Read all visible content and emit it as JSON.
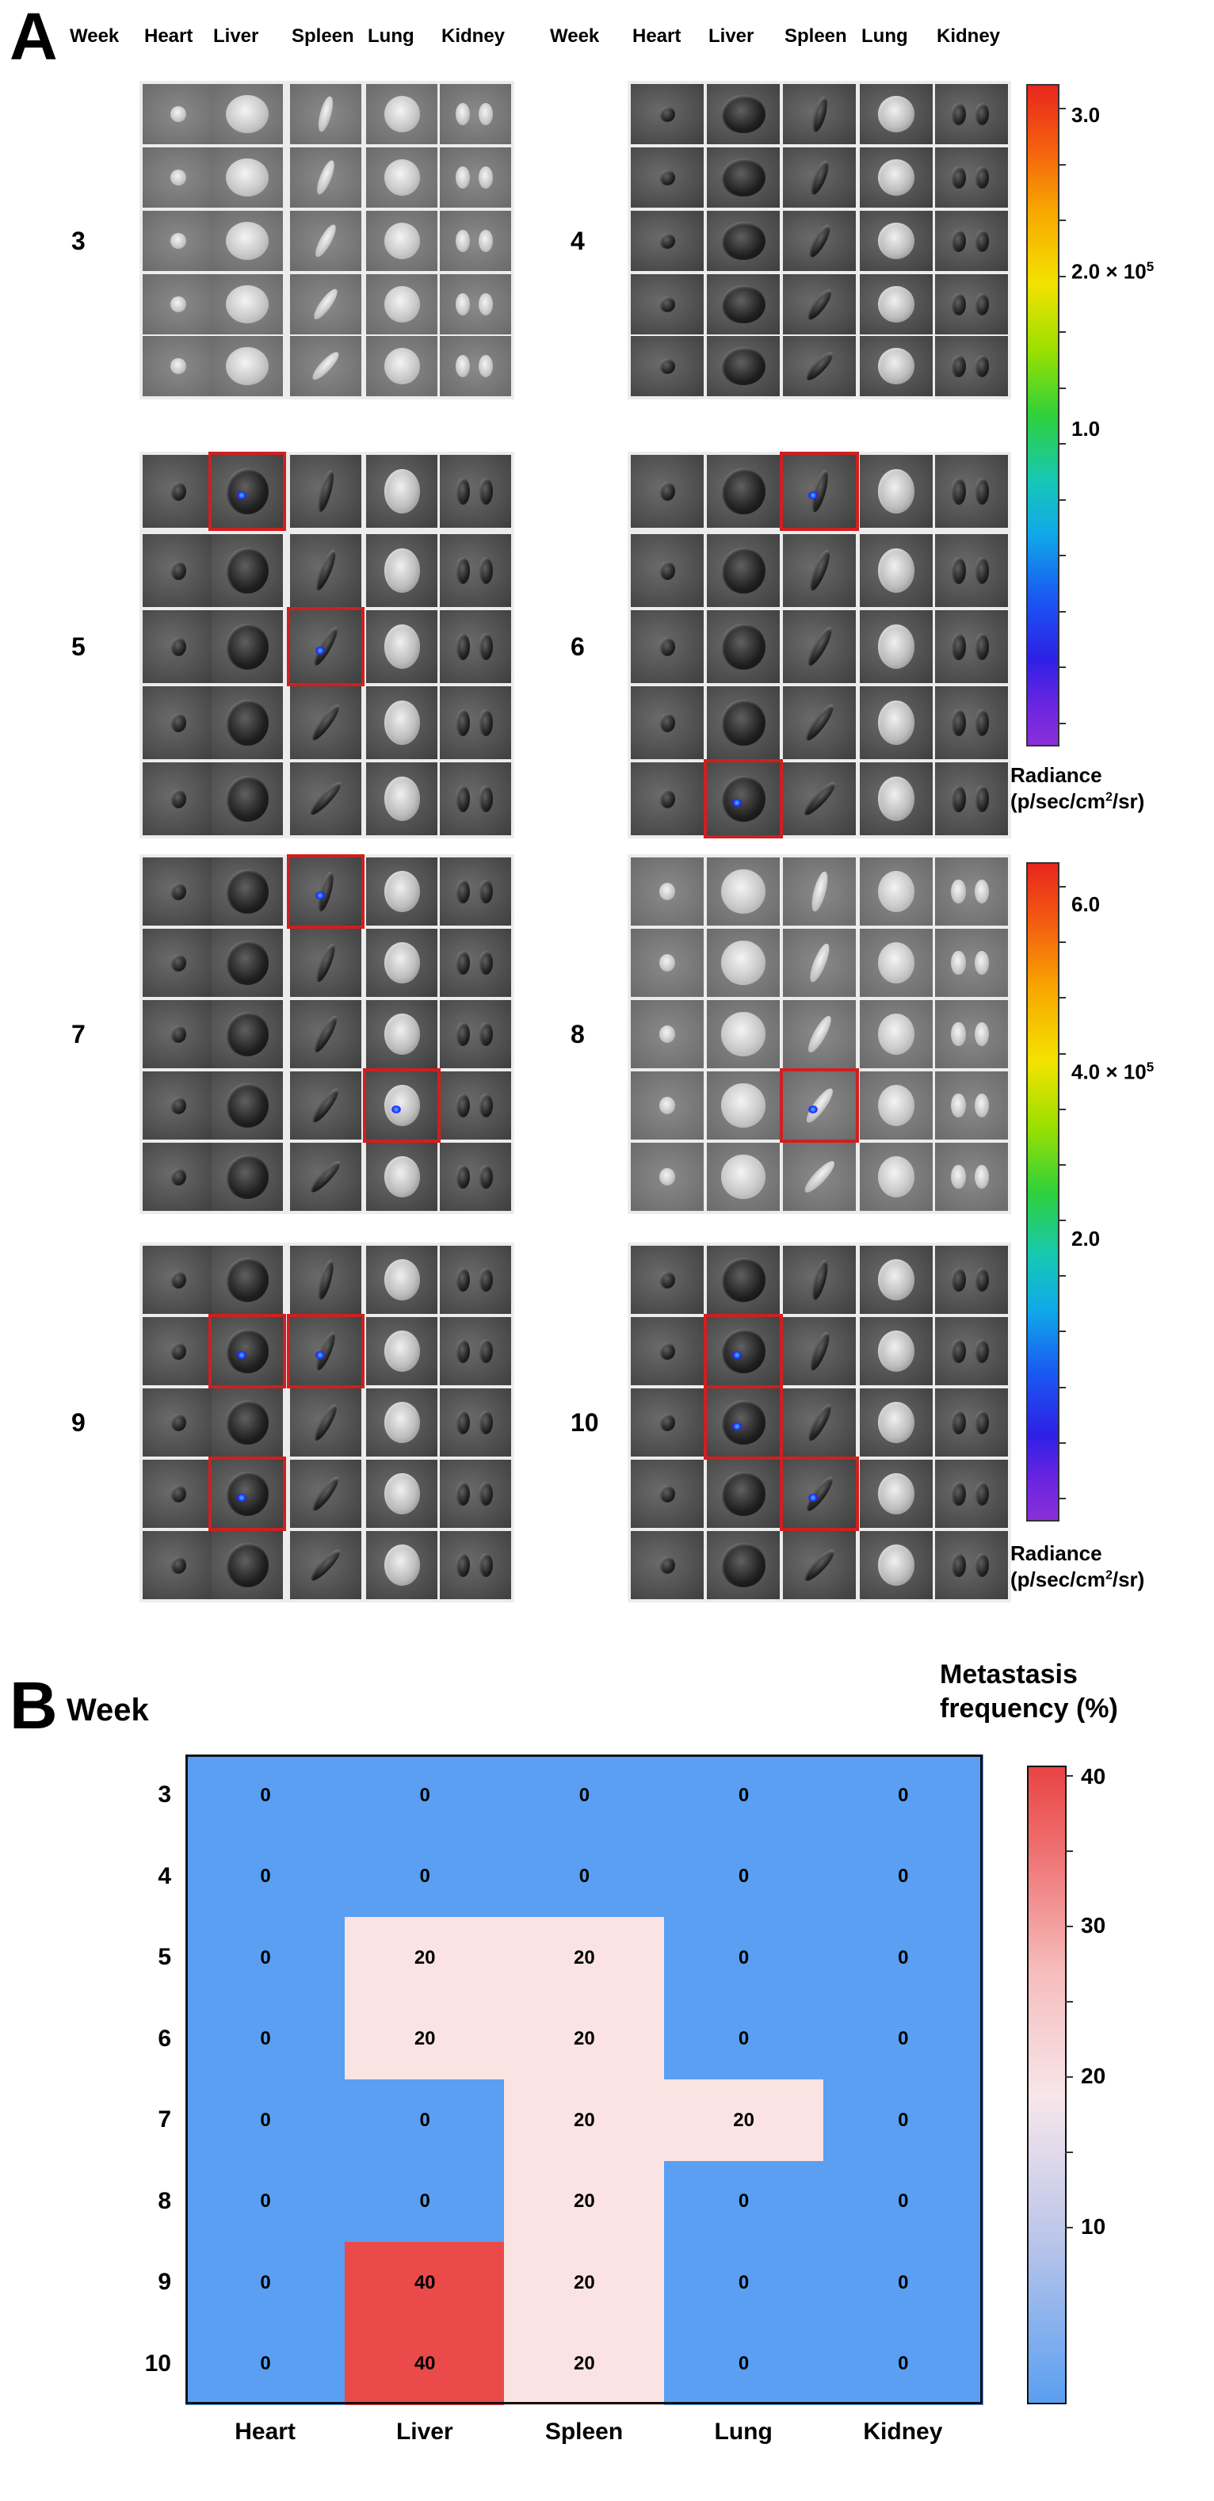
{
  "panel_a": {
    "label": "A",
    "header_week": "Week",
    "organs": [
      "Heart",
      "Liver",
      "Spleen",
      "Lung",
      "Kidney"
    ],
    "groups": [
      {
        "week": "3",
        "style": "light",
        "highlights": []
      },
      {
        "week": "4",
        "style": "dark",
        "highlights": []
      },
      {
        "week": "5",
        "style": "dark",
        "highlights": [
          [
            0,
            1
          ],
          [
            2,
            2
          ]
        ]
      },
      {
        "week": "6",
        "style": "dark",
        "highlights": [
          [
            0,
            2
          ],
          [
            4,
            1
          ]
        ]
      },
      {
        "week": "7",
        "style": "dark",
        "highlights": [
          [
            0,
            2
          ],
          [
            3,
            3
          ]
        ]
      },
      {
        "week": "8",
        "style": "light",
        "highlights": [
          [
            3,
            2
          ]
        ]
      },
      {
        "week": "9",
        "style": "dark",
        "highlights": [
          [
            1,
            1
          ],
          [
            1,
            2
          ],
          [
            3,
            1
          ]
        ]
      },
      {
        "week": "10",
        "style": "dark",
        "highlights": [
          [
            1,
            1
          ],
          [
            2,
            1
          ],
          [
            3,
            2
          ]
        ]
      }
    ],
    "colorbars": [
      {
        "ticks": [
          "3.0",
          "2.0",
          "1.0"
        ],
        "exponent": "5",
        "exp_tick_index": 1,
        "radiance_label_1": "Radiance",
        "radiance_label_2": "(p/sec/cm",
        "radiance_label_sup": "2",
        "radiance_label_3": "/sr)"
      },
      {
        "ticks": [
          "6.0",
          "4.0",
          "2.0"
        ],
        "exponent": "5",
        "exp_tick_index": 1,
        "radiance_label_1": "Radiance",
        "radiance_label_2": "(p/sec/cm",
        "radiance_label_sup": "2",
        "radiance_label_3": "/sr)"
      }
    ],
    "highlight_color": "#d01f1f"
  },
  "panel_b": {
    "label": "B",
    "y_title": "Week",
    "colorbar_title_1": "Metastasis",
    "colorbar_title_2": "frequency (%)",
    "colorbar_ticks": [
      "40",
      "30",
      "20",
      "10"
    ],
    "colors": {
      "low": "#5a9ff1",
      "mid": "#fbe3e3",
      "high": "#ea4a4a"
    }
  },
  "chart_data": {
    "type": "heatmap",
    "title": "",
    "xlabel": "",
    "ylabel": "Week",
    "x": [
      "Heart",
      "Liver",
      "Spleen",
      "Lung",
      "Kidney"
    ],
    "y": [
      "3",
      "4",
      "5",
      "6",
      "7",
      "8",
      "9",
      "10"
    ],
    "values": [
      [
        0,
        0,
        0,
        0,
        0
      ],
      [
        0,
        0,
        0,
        0,
        0
      ],
      [
        0,
        20,
        20,
        0,
        0
      ],
      [
        0,
        20,
        20,
        0,
        0
      ],
      [
        0,
        0,
        20,
        20,
        0
      ],
      [
        0,
        0,
        20,
        0,
        0
      ],
      [
        0,
        40,
        20,
        0,
        0
      ],
      [
        0,
        40,
        20,
        0,
        0
      ]
    ],
    "colorbar_label": "Metastasis frequency (%)",
    "colorbar_range": [
      0,
      40
    ]
  }
}
